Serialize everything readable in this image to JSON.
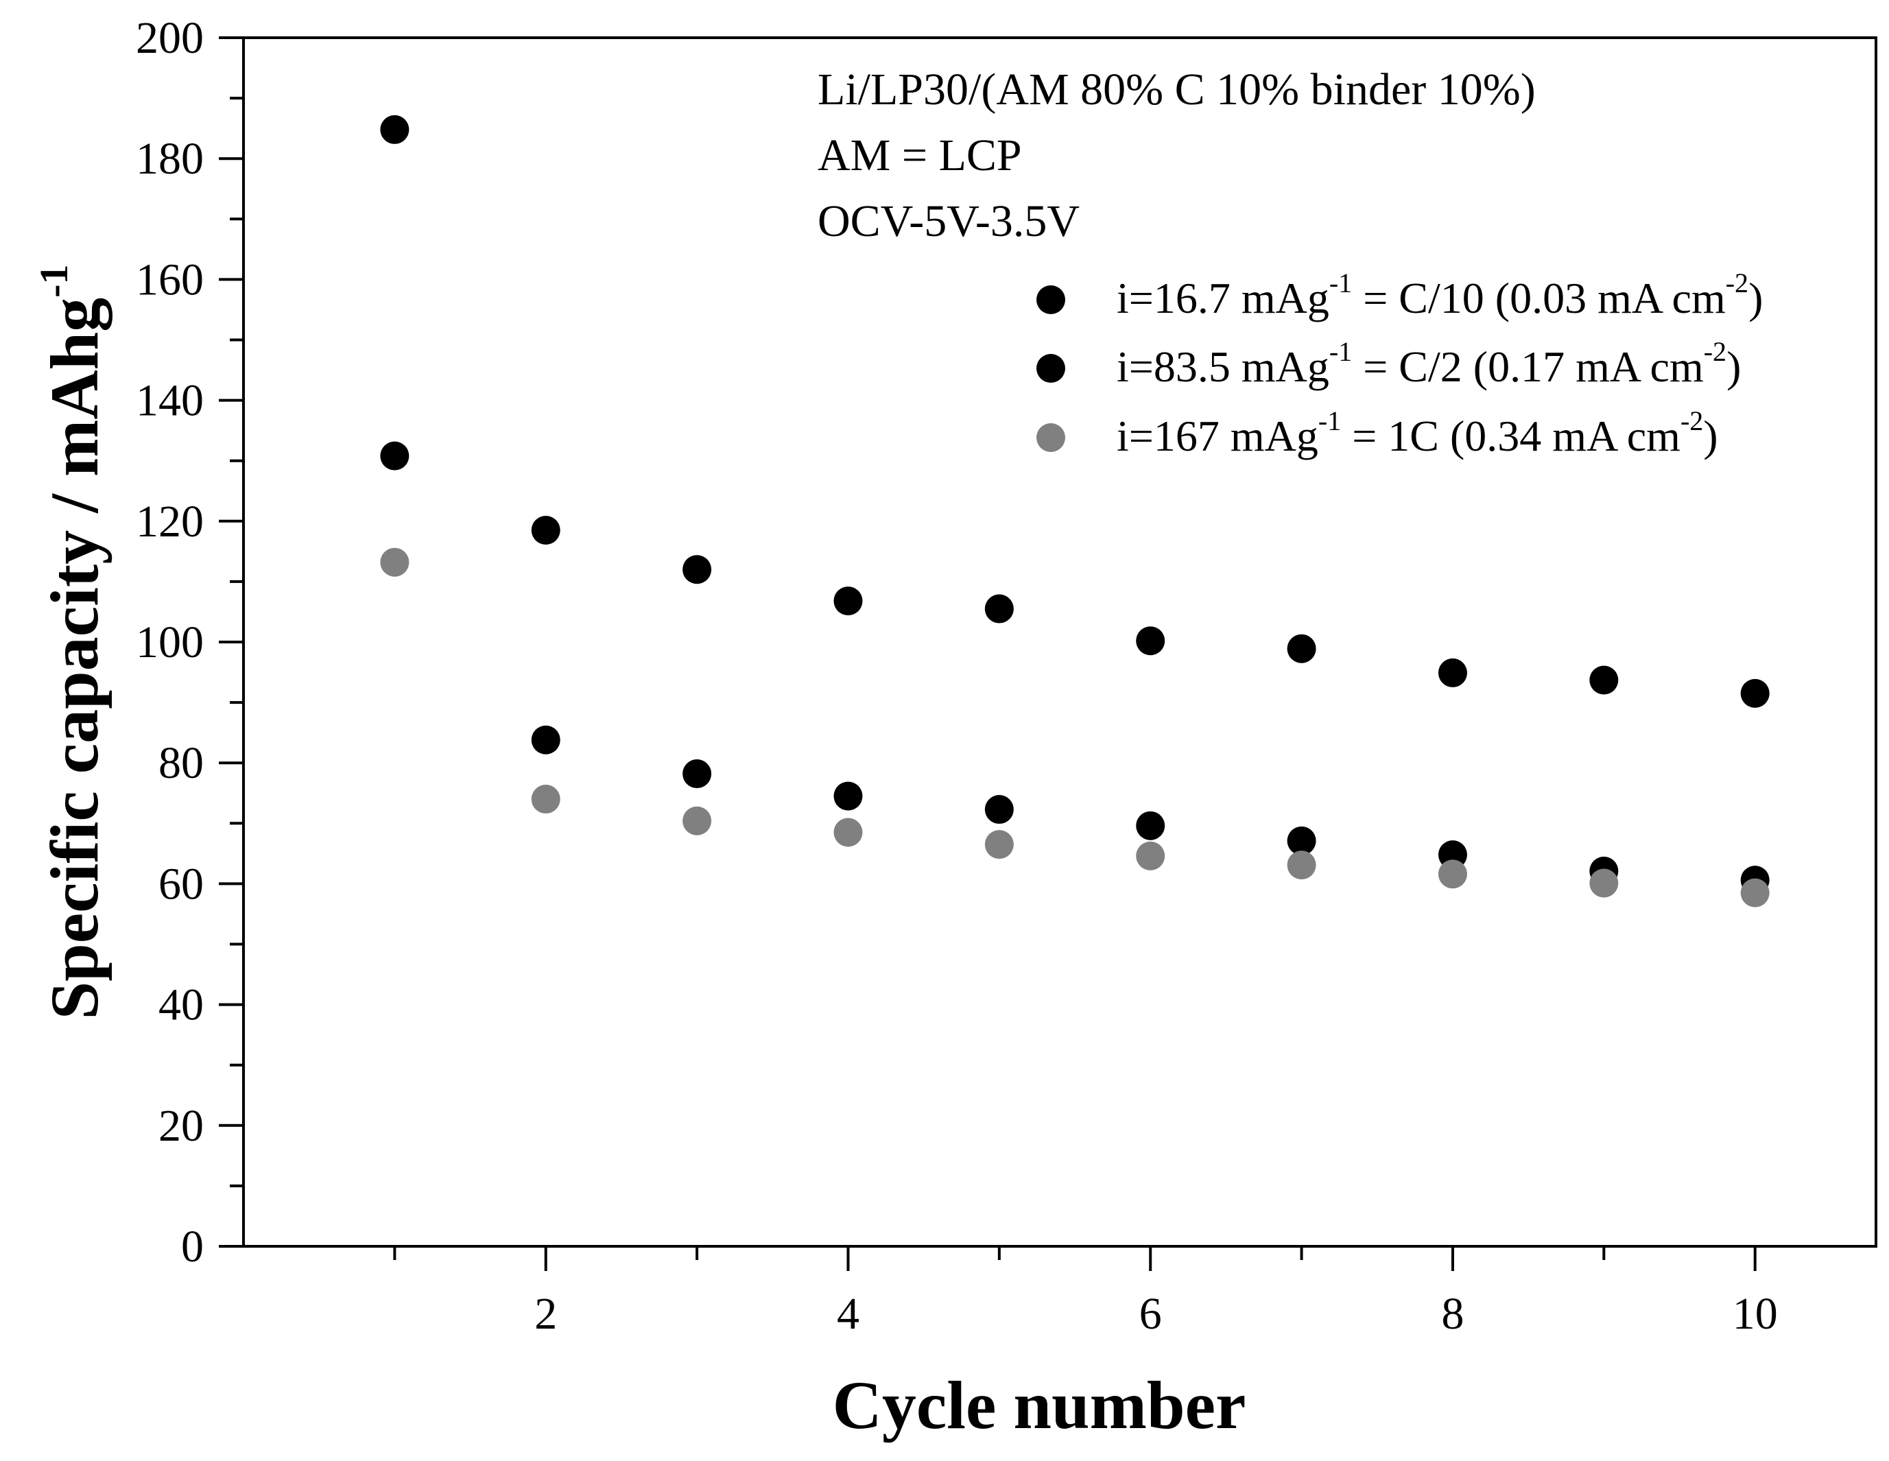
{
  "chart_data": {
    "type": "scatter",
    "title": "",
    "xlabel": "Cycle number",
    "ylabel": "Specific capacity / mAhg",
    "ylabel_sup": "-1",
    "xlim": [
      0,
      10.8
    ],
    "ylim": [
      0,
      200
    ],
    "x_ticks": [
      2,
      4,
      6,
      8,
      10
    ],
    "y_ticks": [
      0,
      20,
      40,
      60,
      80,
      100,
      120,
      140,
      160,
      180,
      200
    ],
    "grid": false,
    "annotations": [
      "Li/LP30/(AM 80% C 10% binder 10%)",
      "AM = LCP",
      "OCV-5V-3.5V"
    ],
    "legend_position": "top-right",
    "series": [
      {
        "name": "i=16.7 mAg-1 = C/10 (0.03 mA cm-2)",
        "label_parts": [
          "i=16.7 mAg",
          "-1",
          " = C/10 (0.03 mA cm",
          "-2",
          ")"
        ],
        "color": "#000000",
        "x": [
          1,
          2,
          3,
          4,
          5,
          6,
          7,
          8,
          9,
          10
        ],
        "values": [
          184.8,
          118.5,
          112.0,
          106.8,
          105.5,
          100.2,
          98.9,
          94.9,
          93.7,
          91.5
        ]
      },
      {
        "name": "i=83.5 mAg-1 = C/2 (0.17 mA cm-2)",
        "label_parts": [
          "i=83.5 mAg",
          "-1",
          " = C/2 (0.17 mA cm",
          "-2",
          ")"
        ],
        "color": "#000000",
        "x": [
          1,
          2,
          3,
          4,
          5,
          6,
          7,
          8,
          9,
          10
        ],
        "values": [
          130.8,
          83.8,
          78.2,
          74.5,
          72.3,
          69.6,
          67.1,
          64.8,
          62.1,
          60.6
        ]
      },
      {
        "name": "i=167 mAg-1 = 1C (0.34 mA cm-2)",
        "label_parts": [
          "i=167 mAg",
          "-1",
          " = 1C (0.34 mA cm",
          "-2",
          ")"
        ],
        "color": "#808080",
        "x": [
          1,
          2,
          3,
          4,
          5,
          6,
          7,
          8,
          9,
          10
        ],
        "values": [
          113.2,
          74.0,
          70.4,
          68.5,
          66.5,
          64.6,
          63.1,
          61.6,
          60.1,
          58.5
        ]
      }
    ]
  }
}
